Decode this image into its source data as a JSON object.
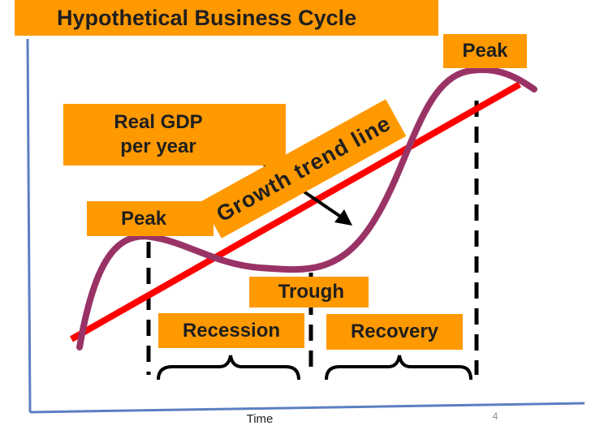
{
  "title": "Hypothetical Business Cycle",
  "labels": {
    "peak_right": "Peak",
    "peak_left": "Peak",
    "gdp_line1": "Real GDP",
    "gdp_line2": "per year",
    "trend_line": "Growth trend line",
    "trough": "Trough",
    "recession": "Recession",
    "recovery": "Recovery",
    "x_axis": "Time"
  },
  "slide_number": "4",
  "colors": {
    "label_box": "#FF9900",
    "trend_line": "#FF0000",
    "cycle_curve": "#993366",
    "axes": "#5B7FC0",
    "dashed_markers": "#000000"
  }
}
